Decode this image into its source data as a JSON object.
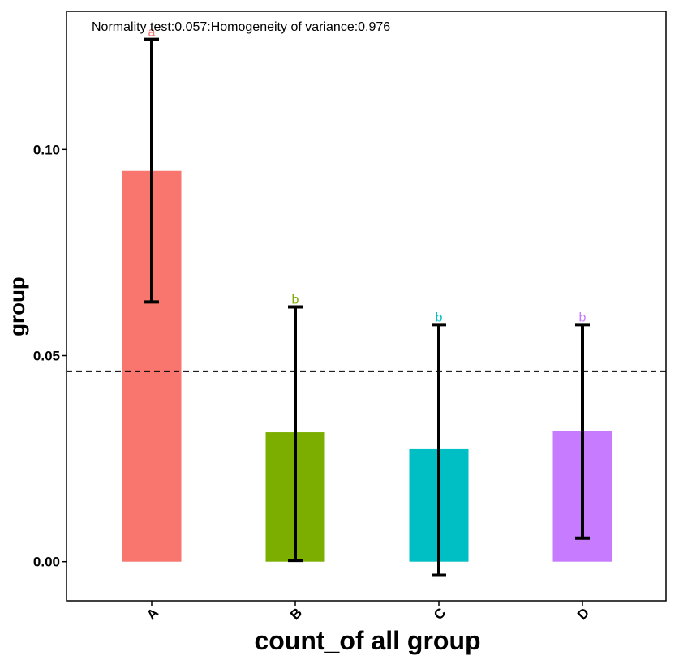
{
  "chart_data": {
    "type": "bar",
    "annotation": "Normality test:0.057:Homogeneity of variance:0.976",
    "xlabel": "count_of all group",
    "ylabel": "group",
    "categories": [
      "A",
      "B",
      "C",
      "D"
    ],
    "values": [
      0.0948,
      0.0314,
      0.0273,
      0.0318
    ],
    "error_low": [
      0.063,
      0.0003,
      -0.0033,
      0.0057
    ],
    "error_high": [
      0.1267,
      0.0618,
      0.0575,
      0.0575
    ],
    "significance_letters": [
      "a",
      "b",
      "b",
      "b"
    ],
    "colors": [
      "#F8766D",
      "#7CAE00",
      "#00BFC4",
      "#C77CFF"
    ],
    "reference_line": 0.0462,
    "ylim": [
      -0.0095,
      0.1335
    ],
    "yticks": [
      0.0,
      0.05,
      0.1
    ],
    "ytick_labels": [
      "0.00",
      "0.05",
      "0.10"
    ],
    "grid": false
  }
}
